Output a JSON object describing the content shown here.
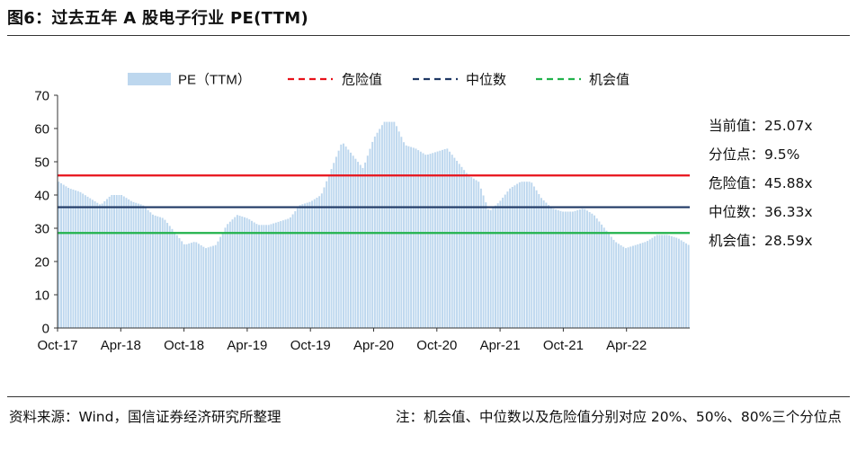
{
  "title": "图6：过去五年 A 股电子行业 PE(TTM)",
  "footer": {
    "source": "资料来源：Wind，国信证券经济研究所整理",
    "note": "注：机会值、中位数以及危险值分别对应 20%、50%、80%三个分位点"
  },
  "stats": [
    {
      "label": "当前值：",
      "value": "25.07x"
    },
    {
      "label": "分位点：",
      "value": "9.5%"
    },
    {
      "label": "危险值：",
      "value": "45.88x"
    },
    {
      "label": "中位数：",
      "value": "36.33x"
    },
    {
      "label": "机会值：",
      "value": "28.59x"
    }
  ],
  "chart_data": {
    "type": "bar",
    "title": "",
    "xlabel": "",
    "ylabel": "",
    "ylim": [
      0,
      70
    ],
    "yticks": [
      0,
      10,
      20,
      30,
      40,
      50,
      60,
      70
    ],
    "xticks": [
      "Oct-17",
      "Apr-18",
      "Oct-18",
      "Apr-19",
      "Oct-19",
      "Apr-20",
      "Oct-20",
      "Apr-21",
      "Oct-21",
      "Apr-22"
    ],
    "legend_position": "top",
    "grid": false,
    "colors": {
      "bars": "#bdd7ee",
      "danger": "#e8121a",
      "median": "#1f3864",
      "opportunity": "#21b24b"
    },
    "series": [
      {
        "name": "PE（TTM）",
        "x": [
          "Oct-17",
          "Nov-17",
          "Dec-17",
          "Jan-18",
          "Feb-18",
          "Mar-18",
          "Apr-18",
          "May-18",
          "Jun-18",
          "Jul-18",
          "Aug-18",
          "Sep-18",
          "Oct-18",
          "Nov-18",
          "Dec-18",
          "Jan-19",
          "Feb-19",
          "Mar-19",
          "Apr-19",
          "May-19",
          "Jun-19",
          "Jul-19",
          "Aug-19",
          "Sep-19",
          "Oct-19",
          "Nov-19",
          "Dec-19",
          "Jan-20",
          "Feb-20",
          "Mar-20",
          "Apr-20",
          "May-20",
          "Jun-20",
          "Jul-20",
          "Aug-20",
          "Sep-20",
          "Oct-20",
          "Nov-20",
          "Dec-20",
          "Jan-21",
          "Feb-21",
          "Mar-21",
          "Apr-21",
          "May-21",
          "Jun-21",
          "Jul-21",
          "Aug-21",
          "Sep-21",
          "Oct-21",
          "Nov-21",
          "Dec-21",
          "Jan-22",
          "Feb-22",
          "Mar-22",
          "Apr-22",
          "May-22",
          "Jun-22",
          "Jul-22",
          "Aug-22",
          "Sep-22",
          "Oct-22"
        ],
        "values": [
          44,
          42,
          41,
          39,
          37,
          40,
          40,
          38,
          37,
          34,
          33,
          29,
          25,
          26,
          24,
          25,
          31,
          34,
          33,
          31,
          31,
          32,
          33,
          37,
          38,
          40,
          48,
          56,
          52,
          48,
          57,
          62,
          62,
          55,
          54,
          52,
          53,
          54,
          50,
          46,
          44,
          35,
          38,
          42,
          44,
          44,
          39,
          36,
          35,
          35,
          36,
          34,
          30,
          26,
          24,
          25,
          26,
          28,
          28,
          27,
          25
        ]
      }
    ],
    "reference_lines": [
      {
        "name": "危险值",
        "value": 45.88
      },
      {
        "name": "中位数",
        "value": 36.33
      },
      {
        "name": "机会值",
        "value": 28.59
      }
    ]
  }
}
